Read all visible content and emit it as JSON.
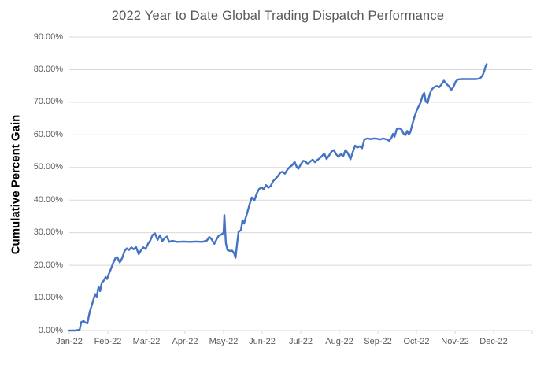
{
  "title": "2022 Year to Date Global Trading Dispatch Performance",
  "y_axis_title": "Cumulative Percent Gain",
  "colors": {
    "line": "#4472C4",
    "grid": "#D9D9D9",
    "tick_text": "#595959",
    "title_text": "#595959",
    "axis_title_text": "#000000"
  },
  "chart_data": {
    "type": "line",
    "title": "2022 Year to Date Global Trading Dispatch Performance",
    "xlabel": "",
    "ylabel": "Cumulative Percent Gain",
    "legend_position": "none",
    "grid": "horizontal",
    "ylim_percent": [
      0,
      90
    ],
    "y_tick_step_percent": 10,
    "y_tick_labels": [
      "0.00%",
      "10.00%",
      "20.00%",
      "30.00%",
      "40.00%",
      "50.00%",
      "60.00%",
      "70.00%",
      "80.00%",
      "90.00%"
    ],
    "x_tick_labels": [
      "Jan-22",
      "Feb-22",
      "Mar-22",
      "Apr-22",
      "May-22",
      "Jun-22",
      "Jul-22",
      "Aug-22",
      "Sep-22",
      "Oct-22",
      "Nov-22",
      "Dec-22"
    ],
    "x_axis_span_months": [
      0,
      12
    ],
    "series": [
      {
        "name": "Cumulative Percent Gain",
        "color": "#4472C4",
        "points_months_vs_percent": [
          [
            0.0,
            0
          ],
          [
            0.16,
            0
          ],
          [
            0.27,
            0.3
          ],
          [
            0.31,
            2.6
          ],
          [
            0.37,
            2.9
          ],
          [
            0.43,
            2.4
          ],
          [
            0.47,
            2.2
          ],
          [
            0.53,
            5.8
          ],
          [
            0.59,
            8.0
          ],
          [
            0.63,
            9.7
          ],
          [
            0.67,
            11.2
          ],
          [
            0.71,
            10.4
          ],
          [
            0.76,
            13.4
          ],
          [
            0.8,
            12.1
          ],
          [
            0.84,
            14.6
          ],
          [
            0.9,
            15.4
          ],
          [
            0.94,
            16.4
          ],
          [
            0.98,
            15.8
          ],
          [
            1.02,
            17.2
          ],
          [
            1.08,
            18.9
          ],
          [
            1.14,
            20.8
          ],
          [
            1.2,
            22.3
          ],
          [
            1.24,
            22.5
          ],
          [
            1.31,
            20.9
          ],
          [
            1.37,
            22.2
          ],
          [
            1.43,
            24.3
          ],
          [
            1.49,
            25.2
          ],
          [
            1.55,
            24.7
          ],
          [
            1.61,
            25.5
          ],
          [
            1.67,
            24.9
          ],
          [
            1.73,
            25.6
          ],
          [
            1.8,
            23.4
          ],
          [
            1.86,
            24.6
          ],
          [
            1.92,
            25.5
          ],
          [
            1.98,
            25.0
          ],
          [
            2.04,
            26.6
          ],
          [
            2.1,
            27.6
          ],
          [
            2.16,
            29.3
          ],
          [
            2.22,
            29.8
          ],
          [
            2.29,
            27.8
          ],
          [
            2.35,
            29.2
          ],
          [
            2.41,
            27.4
          ],
          [
            2.47,
            28.3
          ],
          [
            2.53,
            28.8
          ],
          [
            2.59,
            27.2
          ],
          [
            2.67,
            27.5
          ],
          [
            2.8,
            27.2
          ],
          [
            2.96,
            27.3
          ],
          [
            3.12,
            27.2
          ],
          [
            3.29,
            27.3
          ],
          [
            3.45,
            27.2
          ],
          [
            3.57,
            27.6
          ],
          [
            3.63,
            28.7
          ],
          [
            3.69,
            28.0
          ],
          [
            3.76,
            26.6
          ],
          [
            3.82,
            28.0
          ],
          [
            3.88,
            29.2
          ],
          [
            3.94,
            29.4
          ],
          [
            4.0,
            30.0
          ],
          [
            4.02,
            35.4
          ],
          [
            4.06,
            26.8
          ],
          [
            4.1,
            24.7
          ],
          [
            4.16,
            24.4
          ],
          [
            4.22,
            24.5
          ],
          [
            4.27,
            23.8
          ],
          [
            4.31,
            22.3
          ],
          [
            4.35,
            26.5
          ],
          [
            4.39,
            30.3
          ],
          [
            4.45,
            30.8
          ],
          [
            4.49,
            33.8
          ],
          [
            4.53,
            32.8
          ],
          [
            4.57,
            34.4
          ],
          [
            4.61,
            36.0
          ],
          [
            4.67,
            38.5
          ],
          [
            4.73,
            40.8
          ],
          [
            4.8,
            39.9
          ],
          [
            4.86,
            42.0
          ],
          [
            4.92,
            43.4
          ],
          [
            4.98,
            43.9
          ],
          [
            5.04,
            43.3
          ],
          [
            5.1,
            44.6
          ],
          [
            5.16,
            43.8
          ],
          [
            5.22,
            44.3
          ],
          [
            5.29,
            45.9
          ],
          [
            5.35,
            46.6
          ],
          [
            5.41,
            47.4
          ],
          [
            5.47,
            48.4
          ],
          [
            5.53,
            48.7
          ],
          [
            5.59,
            48.1
          ],
          [
            5.65,
            49.3
          ],
          [
            5.71,
            50.1
          ],
          [
            5.78,
            50.7
          ],
          [
            5.84,
            51.7
          ],
          [
            5.9,
            50.1
          ],
          [
            5.94,
            49.6
          ],
          [
            6.0,
            50.9
          ],
          [
            6.06,
            52.0
          ],
          [
            6.12,
            51.9
          ],
          [
            6.18,
            51.0
          ],
          [
            6.24,
            51.8
          ],
          [
            6.31,
            52.4
          ],
          [
            6.37,
            51.6
          ],
          [
            6.43,
            52.3
          ],
          [
            6.49,
            52.8
          ],
          [
            6.55,
            53.5
          ],
          [
            6.61,
            54.3
          ],
          [
            6.67,
            52.6
          ],
          [
            6.73,
            53.6
          ],
          [
            6.8,
            54.9
          ],
          [
            6.86,
            55.3
          ],
          [
            6.92,
            54.0
          ],
          [
            6.98,
            53.3
          ],
          [
            7.04,
            54.1
          ],
          [
            7.1,
            53.4
          ],
          [
            7.16,
            55.3
          ],
          [
            7.22,
            54.4
          ],
          [
            7.29,
            52.5
          ],
          [
            7.35,
            54.7
          ],
          [
            7.41,
            56.7
          ],
          [
            7.47,
            56.1
          ],
          [
            7.53,
            56.5
          ],
          [
            7.59,
            55.9
          ],
          [
            7.65,
            58.6
          ],
          [
            7.73,
            58.9
          ],
          [
            7.82,
            58.7
          ],
          [
            7.9,
            58.9
          ],
          [
            7.98,
            58.8
          ],
          [
            8.06,
            58.6
          ],
          [
            8.14,
            58.9
          ],
          [
            8.22,
            58.6
          ],
          [
            8.29,
            58.2
          ],
          [
            8.35,
            59.0
          ],
          [
            8.39,
            60.3
          ],
          [
            8.43,
            59.4
          ],
          [
            8.49,
            61.8
          ],
          [
            8.55,
            62.0
          ],
          [
            8.61,
            61.7
          ],
          [
            8.67,
            60.3
          ],
          [
            8.71,
            59.9
          ],
          [
            8.76,
            61.2
          ],
          [
            8.8,
            60.1
          ],
          [
            8.84,
            60.8
          ],
          [
            8.88,
            62.6
          ],
          [
            8.94,
            65.2
          ],
          [
            9.0,
            67.3
          ],
          [
            9.06,
            68.8
          ],
          [
            9.1,
            69.7
          ],
          [
            9.16,
            72.0
          ],
          [
            9.2,
            72.9
          ],
          [
            9.24,
            70.2
          ],
          [
            9.29,
            69.8
          ],
          [
            9.33,
            71.8
          ],
          [
            9.37,
            73.3
          ],
          [
            9.41,
            74.1
          ],
          [
            9.47,
            74.7
          ],
          [
            9.53,
            75.0
          ],
          [
            9.59,
            74.6
          ],
          [
            9.65,
            75.5
          ],
          [
            9.71,
            76.6
          ],
          [
            9.78,
            75.6
          ],
          [
            9.84,
            74.9
          ],
          [
            9.9,
            73.8
          ],
          [
            9.96,
            74.7
          ],
          [
            10.02,
            76.4
          ],
          [
            10.08,
            77.0
          ],
          [
            10.18,
            77.1
          ],
          [
            10.31,
            77.1
          ],
          [
            10.43,
            77.1
          ],
          [
            10.55,
            77.1
          ],
          [
            10.65,
            77.3
          ],
          [
            10.71,
            78.2
          ],
          [
            10.76,
            79.6
          ],
          [
            10.8,
            81.3
          ],
          [
            10.82,
            81.7
          ]
        ]
      }
    ]
  }
}
